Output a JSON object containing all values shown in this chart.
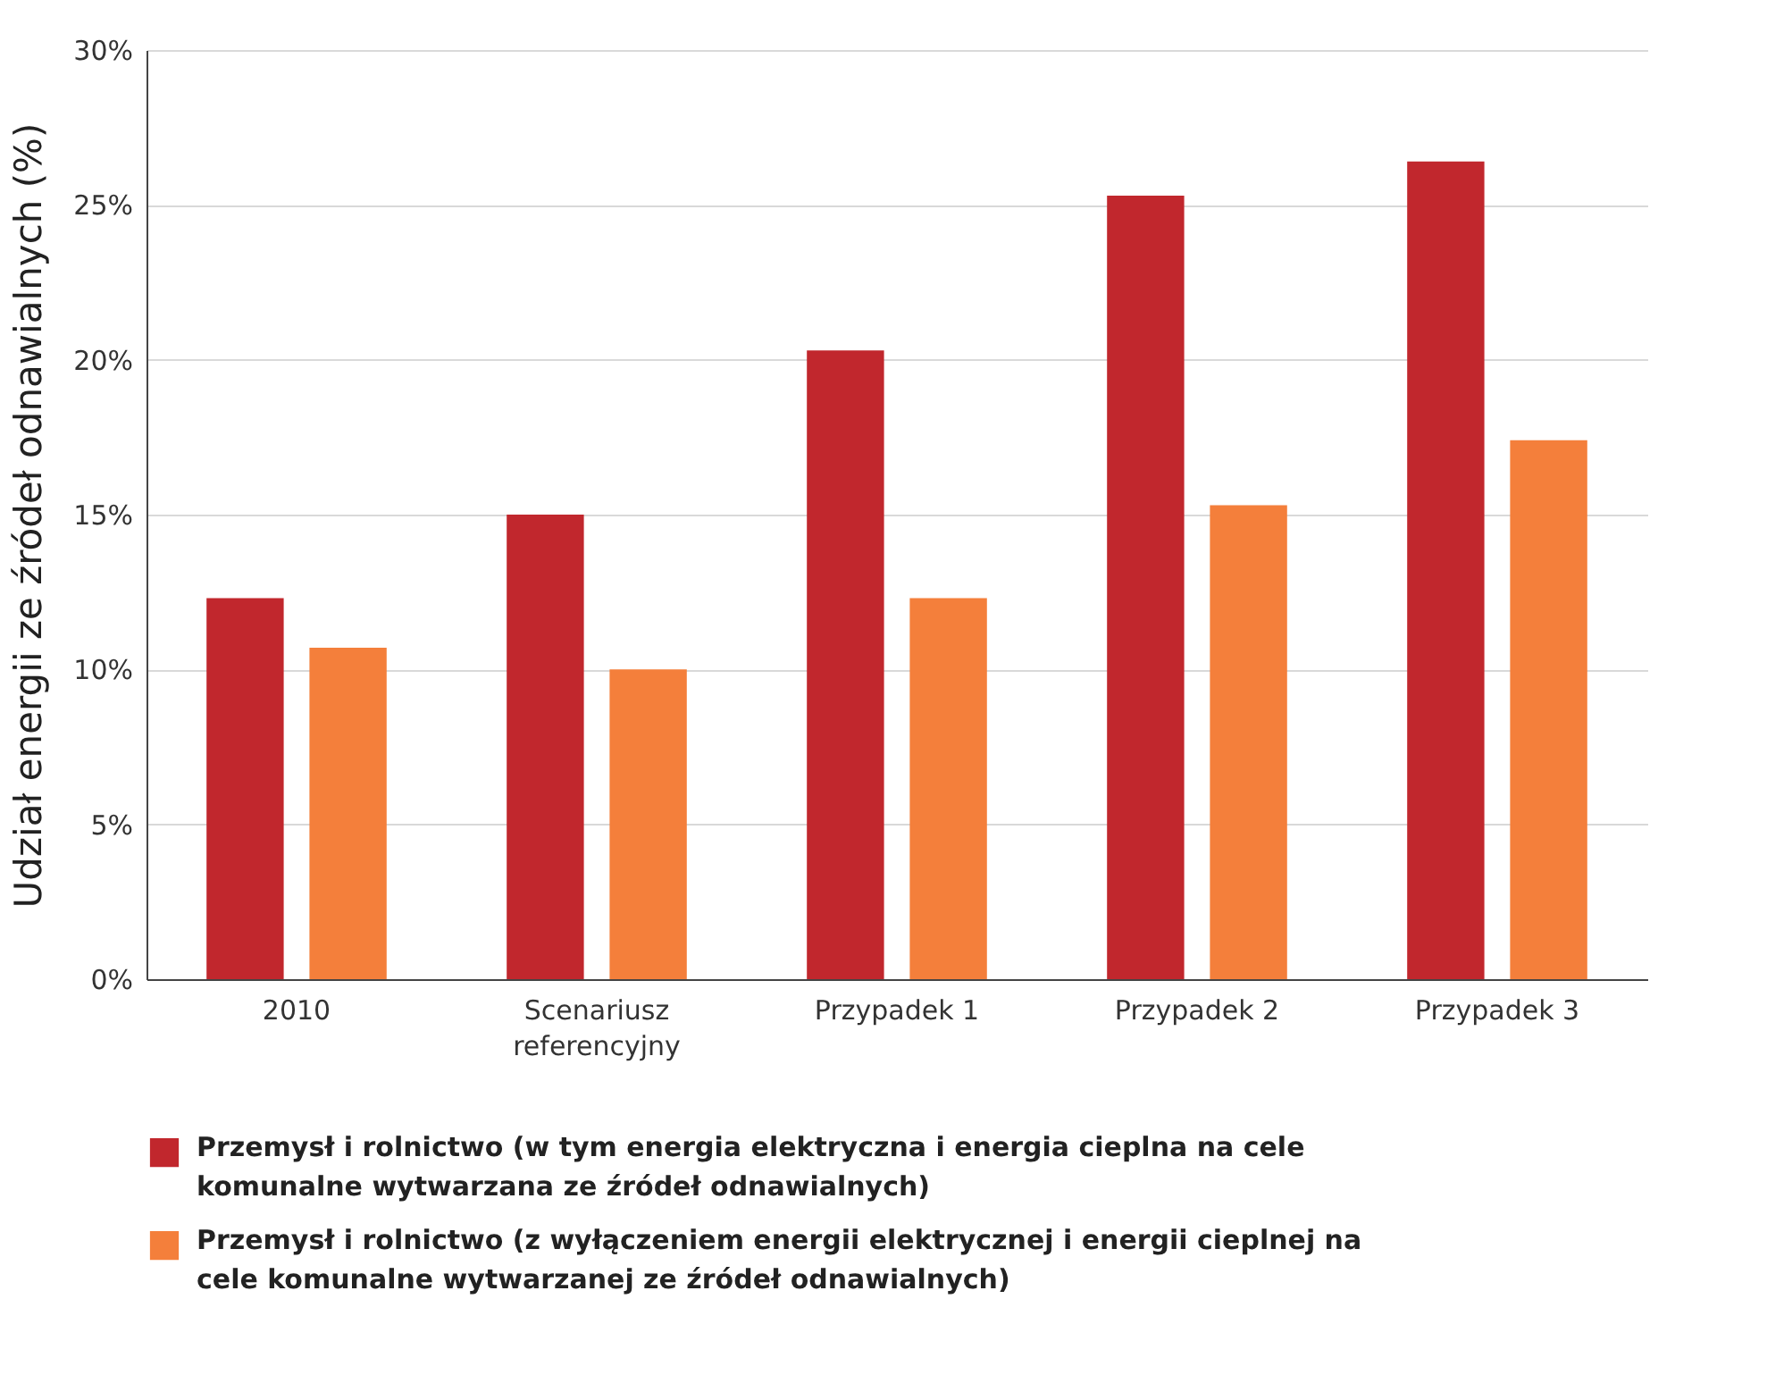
{
  "chart_data": {
    "type": "bar",
    "ylabel": "Udział energii ze źródeł odnawialnych (%)",
    "categories": [
      "2010",
      "Scenariusz referencyjny",
      "Przypadek 1",
      "Przypadek 2",
      "Przypadek 3"
    ],
    "series": [
      {
        "name": "Przemysł i rolnictwo (w tym energia elektryczna i energia cieplna na cele komunalne wytwarzana ze źródeł odnawialnych)",
        "color": "#c1272d",
        "values": [
          12.3,
          15.0,
          20.3,
          25.3,
          26.4
        ]
      },
      {
        "name": "Przemysł i rolnictwo (z wyłączeniem energii elektrycznej i energii cieplnej na cele komunalne wytwarzanej ze źródeł odnawialnych)",
        "color": "#f47f3b",
        "values": [
          10.7,
          10.0,
          12.3,
          15.3,
          17.4
        ]
      }
    ],
    "ylim": [
      0,
      30
    ],
    "yticks": [
      {
        "value": 0,
        "label": "0%"
      },
      {
        "value": 5,
        "label": "5%"
      },
      {
        "value": 10,
        "label": "10%"
      },
      {
        "value": 15,
        "label": "15%"
      },
      {
        "value": 20,
        "label": "20%"
      },
      {
        "value": 25,
        "label": "25%"
      },
      {
        "value": 30,
        "label": "30%"
      }
    ],
    "grid": "y",
    "legend": "bottom"
  }
}
